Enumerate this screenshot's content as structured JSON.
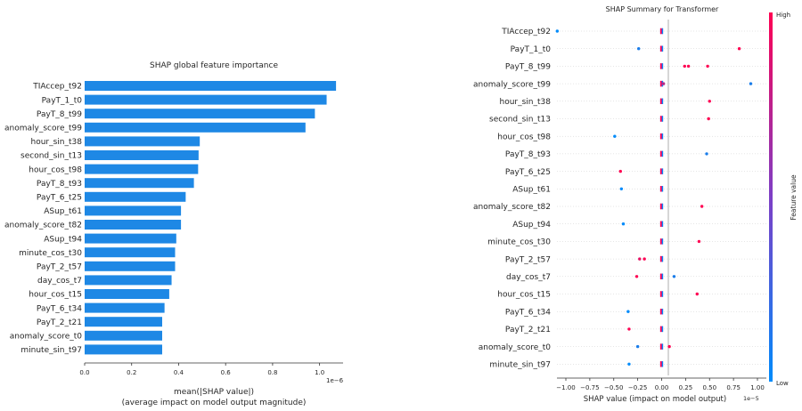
{
  "chart_data": [
    {
      "type": "bar",
      "orientation": "horizontal",
      "title": "SHAP global feature importance",
      "xlabel": "mean(|SHAP value|)",
      "xlabel_sub": "(average impact on model output magnitude)",
      "x_multiplier": "1e−6",
      "xlim": [
        0,
        1.1
      ],
      "xticks": [
        0.0,
        0.2,
        0.4,
        0.6,
        0.8,
        1.0
      ],
      "xtick_labels": [
        "0.0",
        "0.2",
        "0.4",
        "0.6",
        "0.8",
        "1.0"
      ],
      "bar_color": "#1e88e5",
      "categories": [
        "TIAccep_t92",
        "PayT_1_t0",
        "PayT_8_t99",
        "anomaly_score_t99",
        "hour_sin_t38",
        "second_sin_t13",
        "hour_cos_t98",
        "PayT_8_t93",
        "PayT_6_t25",
        "ASup_t61",
        "anomaly_score_t82",
        "ASup_t94",
        "minute_cos_t30",
        "PayT_2_t57",
        "day_cos_t7",
        "hour_cos_t15",
        "PayT_6_t34",
        "PayT_2_t21",
        "anomaly_score_t0",
        "minute_sin_t97"
      ],
      "values": [
        1.07,
        1.03,
        0.98,
        0.94,
        0.49,
        0.485,
        0.483,
        0.465,
        0.43,
        0.41,
        0.41,
        0.39,
        0.385,
        0.385,
        0.37,
        0.36,
        0.34,
        0.33,
        0.33,
        0.33
      ]
    },
    {
      "type": "scatter",
      "subtype": "beeswarm",
      "title": "SHAP Summary for Transformer",
      "xlabel": "SHAP value (impact on model output)",
      "x_multiplier": "1e−5",
      "xlim": [
        -1.22,
        1.02
      ],
      "xticks": [
        -1.0,
        -0.75,
        -0.5,
        -0.25,
        0.0,
        0.25,
        0.5,
        0.75,
        1.0
      ],
      "xtick_labels": [
        "−1.00",
        "−0.75",
        "−0.50",
        "−0.25",
        "0.00",
        "0.25",
        "0.50",
        "0.75",
        "1.00"
      ],
      "colorbar": {
        "label": "Feature value",
        "high": "High",
        "low": "Low",
        "color_low": "#008bfb",
        "color_high": "#ff0052"
      },
      "categories": [
        "TIAccep_t92",
        "PayT_1_t0",
        "PayT_8_t99",
        "anomaly_score_t99",
        "hour_sin_t38",
        "second_sin_t13",
        "hour_cos_t98",
        "PayT_8_t93",
        "PayT_6_t25",
        "ASup_t61",
        "anomaly_score_t82",
        "ASup_t94",
        "minute_cos_t30",
        "PayT_2_t57",
        "day_cos_t7",
        "hour_cos_t15",
        "PayT_6_t34",
        "PayT_2_t21",
        "anomaly_score_t0",
        "minute_sin_t97"
      ],
      "outliers": [
        [
          {
            "x": -1.09,
            "level": 0.0
          }
        ],
        [
          {
            "x": -0.24,
            "level": 0.1
          },
          {
            "x": 0.81,
            "level": 1.0
          }
        ],
        [
          {
            "x": 0.24,
            "level": 1.0
          },
          {
            "x": 0.28,
            "level": 1.0
          },
          {
            "x": 0.48,
            "level": 1.0
          }
        ],
        [
          {
            "x": 0.02,
            "level": 0.7
          },
          {
            "x": 0.93,
            "level": 0.1
          }
        ],
        [
          {
            "x": 0.5,
            "level": 1.0
          }
        ],
        [
          {
            "x": 0.49,
            "level": 1.0
          }
        ],
        [
          {
            "x": -0.49,
            "level": 0.0
          }
        ],
        [
          {
            "x": 0.47,
            "level": 0.1
          }
        ],
        [
          {
            "x": -0.43,
            "level": 1.0
          }
        ],
        [
          {
            "x": -0.42,
            "level": 0.0
          }
        ],
        [
          {
            "x": 0.42,
            "level": 1.0
          }
        ],
        [
          {
            "x": -0.4,
            "level": 0.0
          }
        ],
        [
          {
            "x": 0.39,
            "level": 1.0
          }
        ],
        [
          {
            "x": -0.23,
            "level": 0.9
          },
          {
            "x": -0.18,
            "level": 1.0
          }
        ],
        [
          {
            "x": -0.26,
            "level": 1.0
          },
          {
            "x": 0.13,
            "level": 0.1
          }
        ],
        [
          {
            "x": 0.37,
            "level": 1.0
          }
        ],
        [
          {
            "x": -0.35,
            "level": 0.0
          }
        ],
        [
          {
            "x": -0.34,
            "level": 1.0
          }
        ],
        [
          {
            "x": -0.25,
            "level": 0.1
          },
          {
            "x": 0.08,
            "level": 1.0
          }
        ],
        [
          {
            "x": -0.34,
            "level": 0.0
          }
        ]
      ]
    }
  ]
}
